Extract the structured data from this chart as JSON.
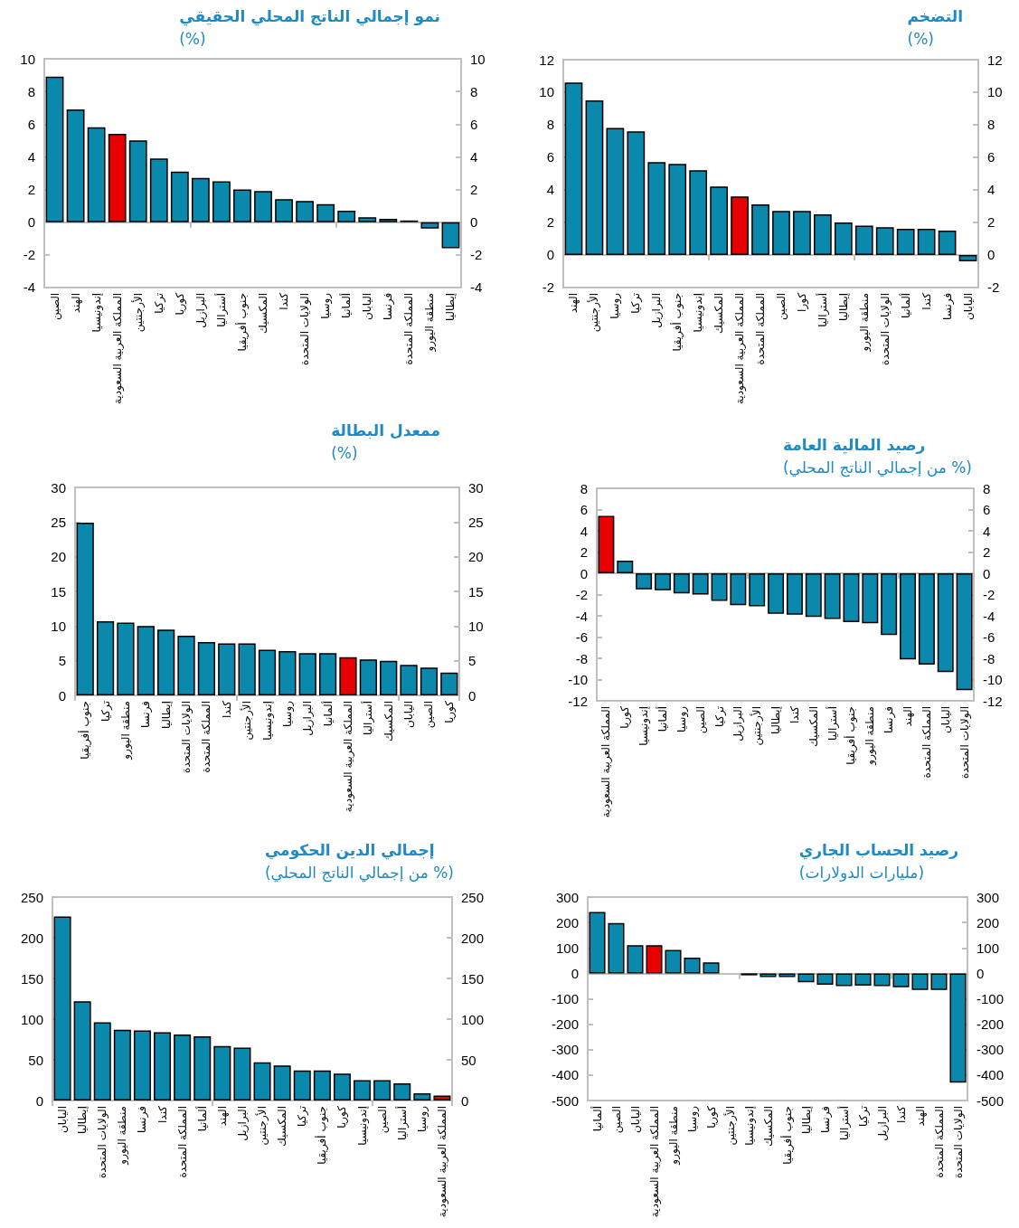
{
  "chart_data": [
    {
      "type": "bar",
      "title": "التضخم",
      "subtitle": "(%)",
      "categories": [
        "الهند",
        "الأرجنتين",
        "روسيا",
        "تركيا",
        "البرازيل",
        "جنوب أفريقيا",
        "إندونيسيا",
        "المكسيك",
        "المملكة العربية السعودية",
        "المملكة المتحدة",
        "الصين",
        "كورا",
        "أستراليا",
        "إيطاليا",
        "منطقة اليورو",
        "الولايات المتحدة",
        "ألمانيا",
        "كندا",
        "فرنسا",
        "اليابان"
      ],
      "values": [
        10.6,
        9.5,
        7.8,
        7.6,
        5.7,
        5.6,
        5.2,
        4.2,
        3.6,
        3.1,
        2.7,
        2.7,
        2.5,
        2.0,
        1.8,
        1.7,
        1.6,
        1.6,
        1.5,
        -0.4
      ],
      "colors": [
        "#0a89ad",
        "#0a89ad",
        "#0a89ad",
        "#0a89ad",
        "#0a89ad",
        "#0a89ad",
        "#0a89ad",
        "#0a89ad",
        "#e60000",
        "#0a89ad",
        "#0a89ad",
        "#0a89ad",
        "#0a89ad",
        "#0a89ad",
        "#0a89ad",
        "#0a89ad",
        "#0a89ad",
        "#0a89ad",
        "#0a89ad",
        "#0a89ad"
      ],
      "ylim": [
        -2,
        12
      ],
      "yticks": [
        -2,
        0,
        2,
        4,
        6,
        8,
        10,
        12
      ],
      "y2lim": [
        -2,
        12
      ],
      "y2ticks": [
        -2,
        0,
        2,
        4,
        6,
        8,
        10,
        12
      ]
    },
    {
      "type": "bar",
      "title": "نمو إجمالي الناتج المحلي الحقيقي",
      "subtitle": "(%)",
      "categories": [
        "الصين",
        "الهند",
        "إندونيسيا",
        "المملكة العربية السعودية",
        "الأرجنتين",
        "تركيا",
        "كوريا",
        "البرازيل",
        "أستراليا",
        "جنوب أفريقيا",
        "المكسيك",
        "كندا",
        "الولايات المتحدة",
        "روسيا",
        "ألمانيا",
        "اليابان",
        "فرنسا",
        "المملكة المتحدة",
        "منطقة اليورو",
        "إيطاليا"
      ],
      "values": [
        8.9,
        6.9,
        5.8,
        5.4,
        5.0,
        3.9,
        3.1,
        2.7,
        2.5,
        2.0,
        1.9,
        1.4,
        1.3,
        1.1,
        0.7,
        0.3,
        0.2,
        0.1,
        -0.4,
        -1.6
      ],
      "colors": [
        "#0a89ad",
        "#0a89ad",
        "#0a89ad",
        "#e60000",
        "#0a89ad",
        "#0a89ad",
        "#0a89ad",
        "#0a89ad",
        "#0a89ad",
        "#0a89ad",
        "#0a89ad",
        "#0a89ad",
        "#0a89ad",
        "#0a89ad",
        "#0a89ad",
        "#0a89ad",
        "#0a89ad",
        "#0a89ad",
        "#0a89ad",
        "#0a89ad"
      ],
      "ylim": [
        -4,
        10
      ],
      "yticks": [
        -4,
        -2,
        0,
        2,
        4,
        6,
        8,
        10
      ],
      "y2lim": [
        -4,
        10
      ],
      "y2ticks": [
        -4,
        -2,
        0,
        2,
        4,
        6,
        8,
        10
      ]
    },
    {
      "type": "bar",
      "title": "رصيد المالية العامة",
      "subtitle": "(% من إجمالي الناتج المحلي)",
      "categories": [
        "المملكة العربية السعودية",
        "كوريا",
        "إندونيسيا",
        "ألمانيا",
        "روسيا",
        "الصين",
        "تركيا",
        "البرازيل",
        "الأرجنتين",
        "إيطاليا",
        "كندا",
        "المكسيك",
        "أستراليا",
        "جنوب أفريقيا",
        "منطقة اليورو",
        "فرنسا",
        "الهند",
        "المملكة المتحدة",
        "اليابان",
        "الولايات المتحدة"
      ],
      "values": [
        5.4,
        1.2,
        -1.5,
        -1.6,
        -1.9,
        -2.0,
        -2.6,
        -3.0,
        -3.1,
        -3.8,
        -3.9,
        -4.1,
        -4.3,
        -4.6,
        -4.7,
        -5.8,
        -8.1,
        -8.6,
        -9.3,
        -11.0
      ],
      "colors": [
        "#e60000",
        "#0a89ad",
        "#0a89ad",
        "#0a89ad",
        "#0a89ad",
        "#0a89ad",
        "#0a89ad",
        "#0a89ad",
        "#0a89ad",
        "#0a89ad",
        "#0a89ad",
        "#0a89ad",
        "#0a89ad",
        "#0a89ad",
        "#0a89ad",
        "#0a89ad",
        "#0a89ad",
        "#0a89ad",
        "#0a89ad",
        "#0a89ad"
      ],
      "ylim": [
        -12,
        8
      ],
      "yticks": [
        -12,
        -10,
        -8,
        -6,
        -4,
        -2,
        0,
        2,
        4,
        6,
        8
      ],
      "y2lim": [
        -12,
        8
      ],
      "y2ticks": [
        -12,
        -10,
        -8,
        -6,
        -4,
        -2,
        0,
        2,
        4,
        6,
        8
      ]
    },
    {
      "type": "bar",
      "title": "ممعدل البطالة",
      "subtitle": "(%)",
      "categories": [
        "جنوب أفريقيا",
        "تركيا",
        "منطقة اليورو",
        "فرنسا",
        "إيطاليا",
        "الولايات المتحدة",
        "المملكة المتحدة",
        "كندا",
        "الأرجنتين",
        "إندونيسيا",
        "روسيا",
        "البرازيل",
        "ألمانيا",
        "المملكة العربية السعودية",
        "أستراليا",
        "المكسيك",
        "اليابان",
        "الصين",
        "كوريا"
      ],
      "values": [
        24.9,
        10.7,
        10.5,
        10.0,
        9.5,
        8.6,
        7.7,
        7.5,
        7.5,
        6.6,
        6.4,
        6.1,
        6.1,
        5.5,
        5.2,
        5.0,
        4.4,
        4.0,
        3.3
      ],
      "colors": [
        "#0a89ad",
        "#0a89ad",
        "#0a89ad",
        "#0a89ad",
        "#0a89ad",
        "#0a89ad",
        "#0a89ad",
        "#0a89ad",
        "#0a89ad",
        "#0a89ad",
        "#0a89ad",
        "#0a89ad",
        "#0a89ad",
        "#e60000",
        "#0a89ad",
        "#0a89ad",
        "#0a89ad",
        "#0a89ad",
        "#0a89ad"
      ],
      "ylim": [
        0,
        30
      ],
      "yticks": [
        0,
        5,
        10,
        15,
        20,
        25,
        30
      ],
      "y2lim": [
        0,
        30
      ],
      "y2ticks": [
        0,
        5,
        10,
        15,
        20,
        25,
        30
      ]
    },
    {
      "type": "bar",
      "title": "رصيد الحساب الجاري",
      "subtitle": "(مليارات الدولارات)",
      "categories": [
        "ألمانيا",
        "الصين",
        "اليابان",
        "المملكة العربية السعودية",
        "منطقة اليورو",
        "روسيا",
        "كوريا",
        "الأرجنتين",
        "إندونيسيا",
        "المكسيك",
        "جنوب أفريقيا",
        "إيطاليا",
        "فرنسا",
        "أستراليا",
        "تركيا",
        "البرازيل",
        "كندا",
        "الهند",
        "المملكة المتحدة",
        "الولايات المتحدة"
      ],
      "values": [
        241,
        198,
        111,
        111,
        92,
        62,
        43,
        0,
        -8,
        -15,
        -15,
        -35,
        -45,
        -50,
        -48,
        -50,
        -55,
        -65,
        -65,
        -430
      ],
      "colors": [
        "#0a89ad",
        "#0a89ad",
        "#0a89ad",
        "#e60000",
        "#0a89ad",
        "#0a89ad",
        "#0a89ad",
        "#0a89ad",
        "#0a89ad",
        "#0a89ad",
        "#0a89ad",
        "#0a89ad",
        "#0a89ad",
        "#0a89ad",
        "#0a89ad",
        "#0a89ad",
        "#0a89ad",
        "#0a89ad",
        "#0a89ad",
        "#0a89ad"
      ],
      "ylim": [
        -500,
        300
      ],
      "yticks": [
        -500,
        -400,
        -300,
        -200,
        -100,
        0,
        100,
        200,
        300
      ],
      "y2lim": [
        -500,
        300
      ],
      "y2ticks": [
        -500,
        -400,
        -300,
        -200,
        -100,
        0,
        100,
        200,
        300
      ]
    },
    {
      "type": "bar",
      "title": "إجمالي الدين الحكومي",
      "subtitle": "(% من إجمالي الناتج المحلي)",
      "categories": [
        "اليابان",
        "إيطاليا",
        "الولايات المتحدة",
        "منطقة اليورو",
        "فرنسا",
        "كندا",
        "المملكة المتحدة",
        "ألمانيا",
        "الهند",
        "البرازيل",
        "الأرجنتين",
        "المكسيك",
        "تركيا",
        "جنوب أفريقيا",
        "كوريا",
        "إندونيسيا",
        "الصين",
        "أستراليا",
        "روسيا",
        "المملكة العربية السعودية"
      ],
      "values": [
        226,
        122,
        96,
        87,
        86,
        84,
        81,
        79,
        67,
        65,
        47,
        43,
        37,
        37,
        33,
        25,
        25,
        21,
        9,
        6
      ],
      "colors": [
        "#0a89ad",
        "#0a89ad",
        "#0a89ad",
        "#0a89ad",
        "#0a89ad",
        "#0a89ad",
        "#0a89ad",
        "#0a89ad",
        "#0a89ad",
        "#0a89ad",
        "#0a89ad",
        "#0a89ad",
        "#0a89ad",
        "#0a89ad",
        "#0a89ad",
        "#0a89ad",
        "#0a89ad",
        "#0a89ad",
        "#0a89ad",
        "#e60000"
      ],
      "ylim": [
        0,
        250
      ],
      "yticks": [
        0,
        50,
        100,
        150,
        200,
        250
      ],
      "y2lim": [
        0,
        250
      ],
      "y2ticks": [
        0,
        50,
        100,
        150,
        200,
        250
      ]
    }
  ]
}
